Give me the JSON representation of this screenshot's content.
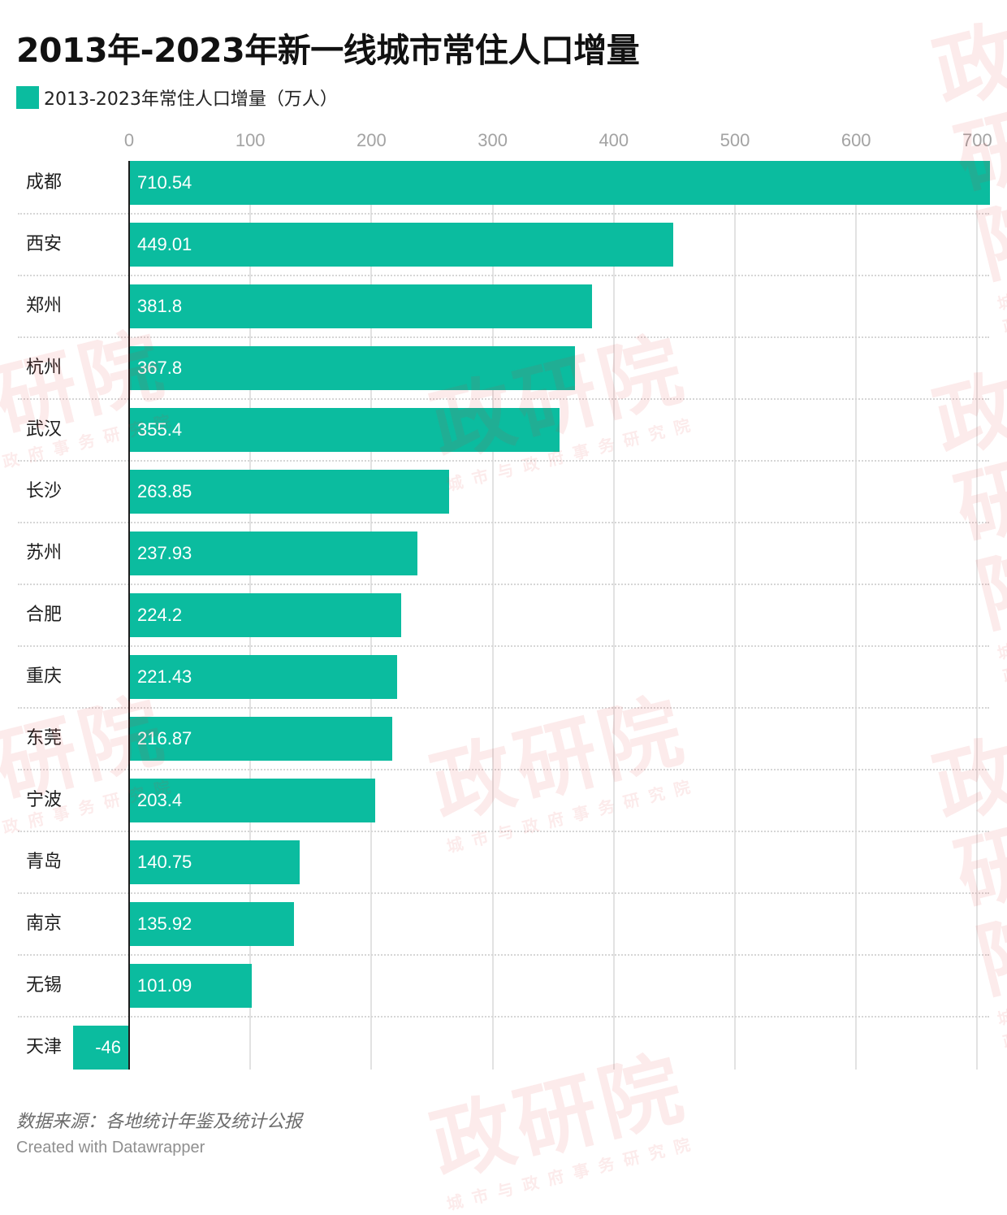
{
  "title": "2013年-2023年新一线城市常住人口增量",
  "legend": {
    "label": "2013-2023年常住人口增量（万人）",
    "color": "#0bbc9f"
  },
  "axis": {
    "ticks": [
      "0",
      "100",
      "200",
      "300",
      "400",
      "500",
      "600",
      "700"
    ]
  },
  "rows": [
    {
      "city": "成都",
      "value_label": "710.54"
    },
    {
      "city": "西安",
      "value_label": "449.01"
    },
    {
      "city": "郑州",
      "value_label": "381.8"
    },
    {
      "city": "杭州",
      "value_label": "367.8"
    },
    {
      "city": "武汉",
      "value_label": "355.4"
    },
    {
      "city": "长沙",
      "value_label": "263.85"
    },
    {
      "city": "苏州",
      "value_label": "237.93"
    },
    {
      "city": "合肥",
      "value_label": "224.2"
    },
    {
      "city": "重庆",
      "value_label": "221.43"
    },
    {
      "city": "东莞",
      "value_label": "216.87"
    },
    {
      "city": "宁波",
      "value_label": "203.4"
    },
    {
      "city": "青岛",
      "value_label": "140.75"
    },
    {
      "city": "南京",
      "value_label": "135.92"
    },
    {
      "city": "无锡",
      "value_label": "101.09"
    },
    {
      "city": "天津",
      "value_label": "-46"
    }
  ],
  "footer": {
    "source": "数据来源：各地统计年鉴及统计公报",
    "credit": "Created with Datawrapper"
  },
  "watermark": {
    "main": "政研院",
    "sub": "城市与政府事务研究院"
  },
  "chart_data": {
    "type": "bar",
    "orientation": "horizontal",
    "title": "2013年-2023年新一线城市常住人口增量",
    "categories": [
      "成都",
      "西安",
      "郑州",
      "杭州",
      "武汉",
      "长沙",
      "苏州",
      "合肥",
      "重庆",
      "东莞",
      "宁波",
      "青岛",
      "南京",
      "无锡",
      "天津"
    ],
    "series": [
      {
        "name": "2013-2023年常住人口增量（万人）",
        "color": "#0bbc9f",
        "values": [
          710.54,
          449.01,
          381.8,
          367.8,
          355.4,
          263.85,
          237.93,
          224.2,
          221.43,
          216.87,
          203.4,
          140.75,
          135.92,
          101.09,
          -46
        ]
      }
    ],
    "xlabel": "",
    "ylabel": "",
    "xlim": [
      -46,
      710.54
    ],
    "xticks": [
      0,
      100,
      200,
      300,
      400,
      500,
      600,
      700
    ],
    "grid": true,
    "legend_position": "top-left",
    "data_labels": "inside-bar",
    "source": "数据来源：各地统计年鉴及统计公报"
  }
}
